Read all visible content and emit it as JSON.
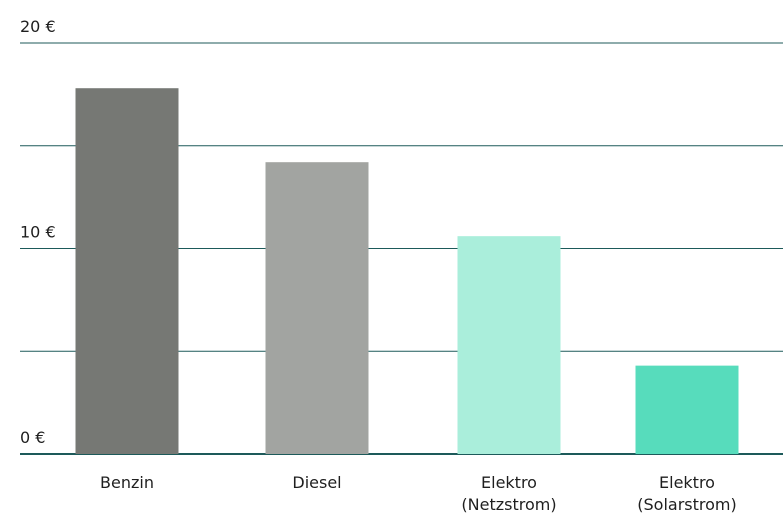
{
  "chart_data": {
    "type": "bar",
    "categories": [
      [
        "Benzin"
      ],
      [
        "Diesel"
      ],
      [
        "Elektro",
        "(Netzstrom)"
      ],
      [
        "Elektro",
        "(Solarstrom)"
      ]
    ],
    "values": [
      17.8,
      14.2,
      10.6,
      4.3
    ],
    "bar_colors": [
      "#767874",
      "#a2a4a1",
      "#aaeedb",
      "#57dcbc"
    ],
    "ylim": [
      0,
      20
    ],
    "gridlines": [
      0,
      5,
      10,
      15,
      20
    ],
    "yticks": [
      {
        "value": 0,
        "label": "0 €"
      },
      {
        "value": 10,
        "label": "10 €"
      },
      {
        "value": 20,
        "label": "20 €"
      }
    ],
    "grid": true,
    "grid_color": "#1d5a5a",
    "title": "",
    "xlabel": "",
    "ylabel": ""
  }
}
